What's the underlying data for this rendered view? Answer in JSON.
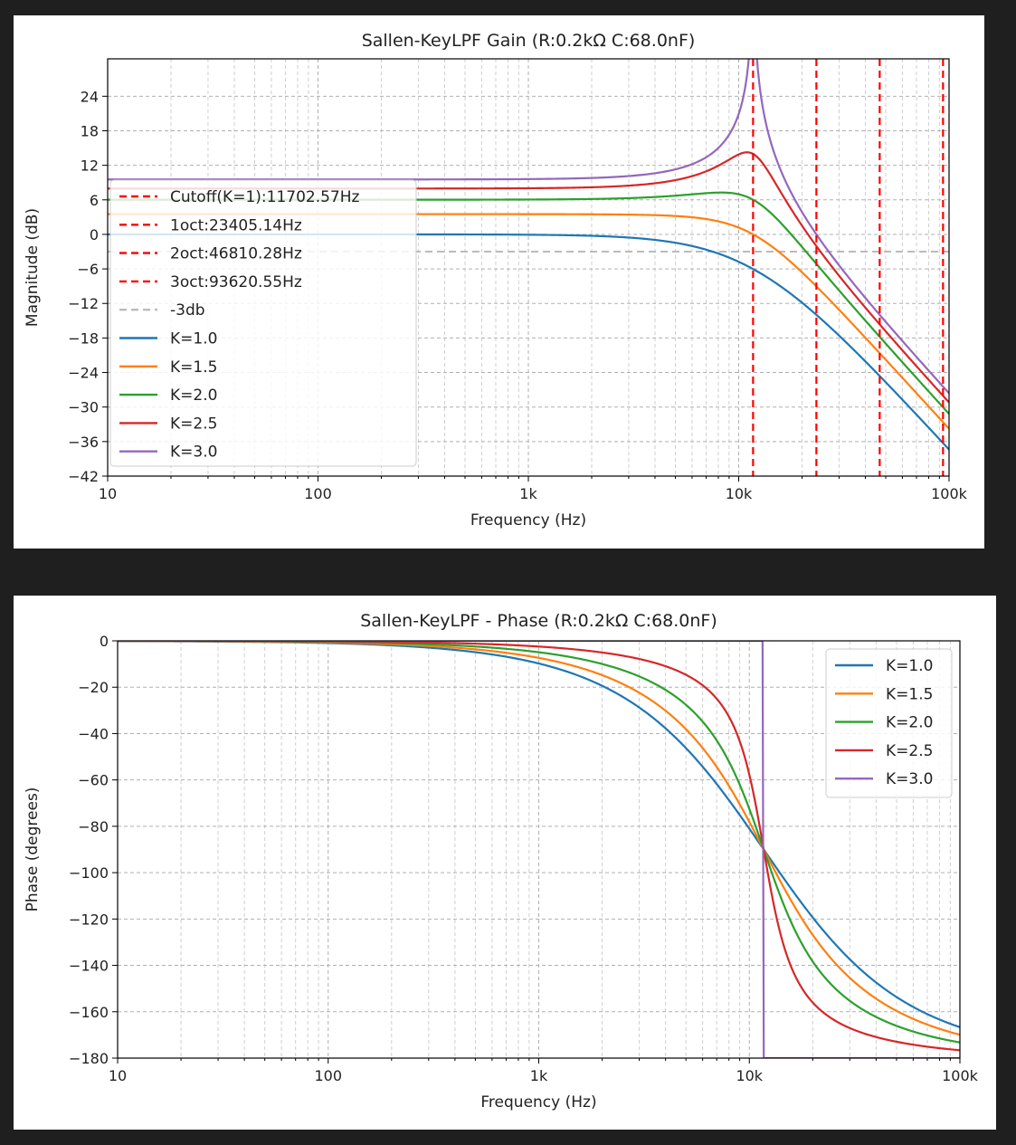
{
  "chart_data": [
    {
      "type": "line",
      "title": "Sallen-KeyLPF Gain (R:0.2kΩ C:68.0nF)",
      "xlabel": "Frequency (Hz)",
      "ylabel": "Magnitude (dB)",
      "xscale": "log",
      "xlim": [
        10,
        100000
      ],
      "ylim": [
        -42,
        30.5
      ],
      "xticks": [
        10,
        100,
        1000,
        10000,
        100000
      ],
      "xticklabels": [
        "10",
        "100",
        "1k",
        "10k",
        "100k"
      ],
      "yticks": [
        -42,
        -36,
        -30,
        -24,
        -18,
        -12,
        -6,
        0,
        6,
        12,
        18,
        24
      ],
      "yticklabels": [
        "−42",
        "−36",
        "−30",
        "−24",
        "−18",
        "−12",
        "−6",
        "0",
        "6",
        "12",
        "18",
        "24"
      ],
      "grid": true,
      "legend": "upper-left",
      "cutoff_hz": 11702.57,
      "vlines": [
        {
          "name": "Cutoff(K=1):11702.57Hz",
          "x": 11702.57,
          "color": "#ff0000",
          "style": "dashed"
        },
        {
          "name": "1oct:23405.14Hz",
          "x": 23405.14,
          "color": "#ff0000",
          "style": "dashed"
        },
        {
          "name": "2oct:46810.28Hz",
          "x": 46810.28,
          "color": "#ff0000",
          "style": "dashed"
        },
        {
          "name": "3oct:93620.55Hz",
          "x": 93620.55,
          "color": "#ff0000",
          "style": "dashed"
        }
      ],
      "hlines": [
        {
          "name": "-3db",
          "y": -3,
          "color": "#bbbbbb",
          "style": "dashed"
        }
      ],
      "series": [
        {
          "name": "K=1.0",
          "K": 1.0,
          "color": "#1f77b4"
        },
        {
          "name": "K=1.5",
          "K": 1.5,
          "color": "#ff7f0e"
        },
        {
          "name": "K=2.0",
          "K": 2.0,
          "color": "#2ca02c"
        },
        {
          "name": "K=2.5",
          "K": 2.5,
          "color": "#d62728"
        },
        {
          "name": "K=3.0",
          "K": 3.0,
          "color": "#9467bd"
        }
      ]
    },
    {
      "type": "line",
      "title": "Sallen-KeyLPF - Phase (R:0.2kΩ C:68.0nF)",
      "xlabel": "Frequency (Hz)",
      "ylabel": "Phase (degrees)",
      "xscale": "log",
      "xlim": [
        10,
        100000
      ],
      "ylim": [
        -180,
        0
      ],
      "xticks": [
        10,
        100,
        1000,
        10000,
        100000
      ],
      "xticklabels": [
        "10",
        "100",
        "1k",
        "10k",
        "100k"
      ],
      "yticks": [
        -180,
        -160,
        -140,
        -120,
        -100,
        -80,
        -60,
        -40,
        -20,
        0
      ],
      "yticklabels": [
        "−180",
        "−160",
        "−140",
        "−120",
        "−100",
        "−80",
        "−60",
        "−40",
        "−20",
        "0"
      ],
      "grid": true,
      "legend": "upper-right",
      "cutoff_hz": 11702.57,
      "series": [
        {
          "name": "K=1.0",
          "K": 1.0,
          "color": "#1f77b4"
        },
        {
          "name": "K=1.5",
          "K": 1.5,
          "color": "#ff7f0e"
        },
        {
          "name": "K=2.0",
          "K": 2.0,
          "color": "#2ca02c"
        },
        {
          "name": "K=2.5",
          "K": 2.5,
          "color": "#d62728"
        },
        {
          "name": "K=3.0",
          "K": 3.0,
          "color": "#9467bd"
        }
      ]
    }
  ]
}
